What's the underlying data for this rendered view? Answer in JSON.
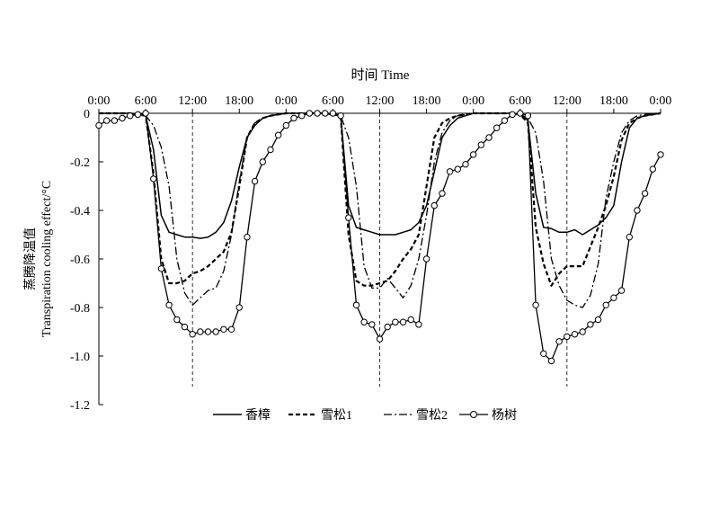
{
  "chart_data": {
    "type": "line",
    "title": "",
    "top_axis_label": "时间 Time",
    "ylabel_zh": "蒸腾降温值",
    "ylabel_en": "Transpiration cooling effect/°C",
    "ylim": [
      -1.2,
      0
    ],
    "yticks": [
      0,
      -0.2,
      -0.4,
      -0.6,
      -0.8,
      -1.0,
      -1.2
    ],
    "ytick_labels": [
      "0",
      "-0.2",
      "-0.4",
      "-0.6",
      "-0.8",
      "-1.0",
      "-1.2"
    ],
    "xlim_hours": [
      0,
      72
    ],
    "xticks_hours": [
      0,
      6,
      12,
      18,
      24,
      30,
      36,
      42,
      48,
      54,
      60,
      66,
      72
    ],
    "xtick_labels": [
      "0:00",
      "6:00",
      "12:00",
      "18:00",
      "0:00",
      "6:00",
      "12:00",
      "18:00",
      "0:00",
      "6:00",
      "12:00",
      "18:00",
      "0:00"
    ],
    "noon_markers_hours": [
      12,
      36,
      60
    ],
    "grid": false,
    "legend_position": "bottom",
    "series": [
      {
        "name": "香樟",
        "style": "solid",
        "x": [
          0,
          2,
          4,
          5,
          6,
          7,
          8,
          9,
          10,
          11,
          12,
          13,
          14,
          15,
          16,
          17,
          18,
          19,
          20,
          21,
          22,
          23,
          24,
          26,
          28,
          29,
          30,
          31,
          32,
          33,
          34,
          35,
          36,
          37,
          38,
          39,
          40,
          41,
          42,
          43,
          44,
          45,
          46,
          47,
          48,
          50,
          52,
          53,
          54,
          55,
          56,
          57,
          58,
          59,
          60,
          61,
          62,
          63,
          64,
          65,
          66,
          67,
          68,
          69,
          70,
          71,
          72
        ],
        "y": [
          0,
          0,
          0,
          -0.005,
          -0.01,
          -0.15,
          -0.42,
          -0.49,
          -0.5,
          -0.51,
          -0.51,
          -0.515,
          -0.51,
          -0.49,
          -0.45,
          -0.36,
          -0.22,
          -0.1,
          -0.05,
          -0.02,
          -0.01,
          -0.005,
          0,
          0,
          0,
          0,
          -0.005,
          -0.01,
          -0.38,
          -0.47,
          -0.48,
          -0.49,
          -0.5,
          -0.5,
          -0.5,
          -0.49,
          -0.48,
          -0.45,
          -0.38,
          -0.24,
          -0.1,
          -0.05,
          -0.02,
          -0.01,
          0,
          0,
          0,
          0,
          -0.005,
          -0.03,
          -0.33,
          -0.47,
          -0.475,
          -0.49,
          -0.49,
          -0.48,
          -0.5,
          -0.48,
          -0.46,
          -0.43,
          -0.38,
          -0.2,
          -0.06,
          -0.02,
          -0.01,
          -0.005,
          0
        ]
      },
      {
        "name": "雪松1",
        "style": "dashed",
        "x": [
          0,
          2,
          4,
          5,
          6,
          7,
          8,
          9,
          10,
          11,
          12,
          13,
          14,
          15,
          16,
          17,
          18,
          19,
          20,
          21,
          22,
          23,
          24,
          26,
          28,
          29,
          30,
          31,
          32,
          33,
          34,
          35,
          36,
          37,
          38,
          39,
          40,
          41,
          42,
          43,
          44,
          45,
          46,
          47,
          48,
          50,
          52,
          53,
          54,
          55,
          56,
          57,
          58,
          59,
          60,
          61,
          62,
          63,
          64,
          65,
          66,
          67,
          68,
          69,
          70,
          71,
          72
        ],
        "y": [
          0,
          0,
          0,
          -0.005,
          -0.01,
          -0.25,
          -0.6,
          -0.7,
          -0.7,
          -0.69,
          -0.66,
          -0.65,
          -0.63,
          -0.6,
          -0.57,
          -0.49,
          -0.3,
          -0.1,
          -0.04,
          -0.02,
          -0.01,
          -0.005,
          0,
          0,
          0,
          0,
          -0.005,
          -0.01,
          -0.5,
          -0.69,
          -0.71,
          -0.71,
          -0.7,
          -0.69,
          -0.65,
          -0.6,
          -0.56,
          -0.5,
          -0.3,
          -0.1,
          -0.04,
          -0.02,
          -0.01,
          -0.005,
          0,
          0,
          0,
          0,
          -0.005,
          -0.04,
          -0.47,
          -0.62,
          -0.71,
          -0.66,
          -0.63,
          -0.63,
          -0.63,
          -0.55,
          -0.47,
          -0.38,
          -0.26,
          -0.11,
          -0.04,
          -0.02,
          -0.01,
          -0.005,
          0
        ]
      },
      {
        "name": "雪松2",
        "style": "dashdot",
        "x": [
          0,
          2,
          4,
          5,
          6,
          7,
          8,
          9,
          10,
          11,
          12,
          13,
          14,
          15,
          16,
          17,
          18,
          19,
          20,
          21,
          22,
          23,
          24,
          26,
          28,
          29,
          30,
          31,
          32,
          33,
          34,
          35,
          36,
          37,
          38,
          39,
          40,
          41,
          42,
          43,
          44,
          45,
          46,
          47,
          48,
          50,
          52,
          53,
          54,
          55,
          56,
          57,
          58,
          59,
          60,
          61,
          62,
          63,
          64,
          65,
          66,
          67,
          68,
          69,
          70,
          71,
          72
        ],
        "y": [
          0,
          0,
          0,
          -0.005,
          -0.01,
          -0.05,
          -0.14,
          -0.3,
          -0.6,
          -0.74,
          -0.79,
          -0.76,
          -0.73,
          -0.72,
          -0.65,
          -0.5,
          -0.28,
          -0.1,
          -0.04,
          -0.02,
          -0.01,
          -0.005,
          0,
          0,
          0,
          0,
          -0.005,
          -0.01,
          -0.1,
          -0.3,
          -0.63,
          -0.72,
          -0.72,
          -0.68,
          -0.72,
          -0.76,
          -0.71,
          -0.6,
          -0.42,
          -0.2,
          -0.08,
          -0.03,
          -0.01,
          -0.005,
          0,
          0,
          0,
          0,
          -0.005,
          -0.02,
          -0.08,
          -0.28,
          -0.6,
          -0.71,
          -0.77,
          -0.79,
          -0.8,
          -0.75,
          -0.62,
          -0.35,
          -0.2,
          -0.08,
          -0.03,
          -0.01,
          -0.005,
          0,
          0
        ]
      },
      {
        "name": "杨树",
        "style": "solid-circle",
        "x": [
          0,
          1,
          2,
          3,
          4,
          5,
          6,
          7,
          8,
          9,
          10,
          11,
          12,
          13,
          14,
          15,
          16,
          17,
          18,
          19,
          20,
          21,
          22,
          23,
          24,
          25,
          26,
          27,
          28,
          29,
          30,
          31,
          32,
          33,
          34,
          35,
          36,
          37,
          38,
          39,
          40,
          41,
          42,
          43,
          44,
          45,
          46,
          47,
          48,
          49,
          50,
          51,
          52,
          53,
          54,
          55,
          56,
          57,
          58,
          59,
          60,
          61,
          62,
          63,
          64,
          65,
          66,
          67,
          68,
          69,
          70,
          71,
          72
        ],
        "y": [
          -0.05,
          -0.03,
          -0.03,
          -0.02,
          -0.01,
          -0.005,
          0,
          -0.27,
          -0.64,
          -0.79,
          -0.85,
          -0.88,
          -0.91,
          -0.9,
          -0.9,
          -0.9,
          -0.89,
          -0.89,
          -0.8,
          -0.51,
          -0.28,
          -0.2,
          -0.15,
          -0.09,
          -0.05,
          -0.02,
          -0.01,
          0,
          0,
          0,
          0,
          -0.01,
          -0.43,
          -0.79,
          -0.86,
          -0.87,
          -0.93,
          -0.88,
          -0.86,
          -0.86,
          -0.85,
          -0.87,
          -0.6,
          -0.38,
          -0.33,
          -0.24,
          -0.23,
          -0.21,
          -0.17,
          -0.13,
          -0.1,
          -0.06,
          -0.03,
          -0.005,
          0,
          -0.01,
          -0.79,
          -0.99,
          -1.02,
          -0.94,
          -0.92,
          -0.91,
          -0.9,
          -0.87,
          -0.85,
          -0.79,
          -0.76,
          -0.73,
          -0.51,
          -0.4,
          -0.33,
          -0.23,
          -0.17
        ]
      }
    ]
  }
}
